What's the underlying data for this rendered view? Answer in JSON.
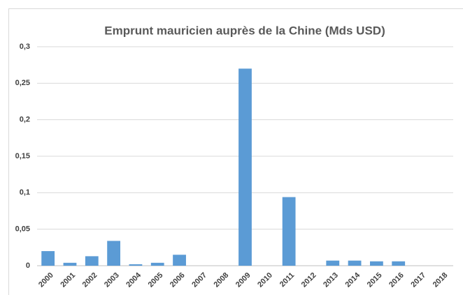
{
  "chart_data": {
    "type": "bar",
    "title": "Emprunt mauricien auprès de la Chine (Mds USD)",
    "categories": [
      "2000",
      "2001",
      "2002",
      "2003",
      "2004",
      "2005",
      "2006",
      "2007",
      "2008",
      "2009",
      "2010",
      "2011",
      "2012",
      "2013",
      "2014",
      "2015",
      "2016",
      "2017",
      "2018"
    ],
    "values": [
      0.02,
      0.004,
      0.013,
      0.034,
      0.002,
      0.004,
      0.015,
      0,
      0,
      0.27,
      0,
      0.094,
      0,
      0.007,
      0.007,
      0.006,
      0.006,
      0,
      0
    ],
    "color": "#5b9bd5",
    "ylim": [
      0,
      0.3
    ],
    "yticks": [
      0,
      {
        "value": 0.05,
        "label": "0,05"
      },
      {
        "value": 0.1,
        "label": "0,1"
      },
      {
        "value": 0.15,
        "label": "0,15"
      },
      {
        "value": 0.2,
        "label": "0,2"
      },
      {
        "value": 0.25,
        "label": "0,25"
      },
      {
        "value": 0.3,
        "label": "0,3"
      }
    ],
    "grid": true
  }
}
